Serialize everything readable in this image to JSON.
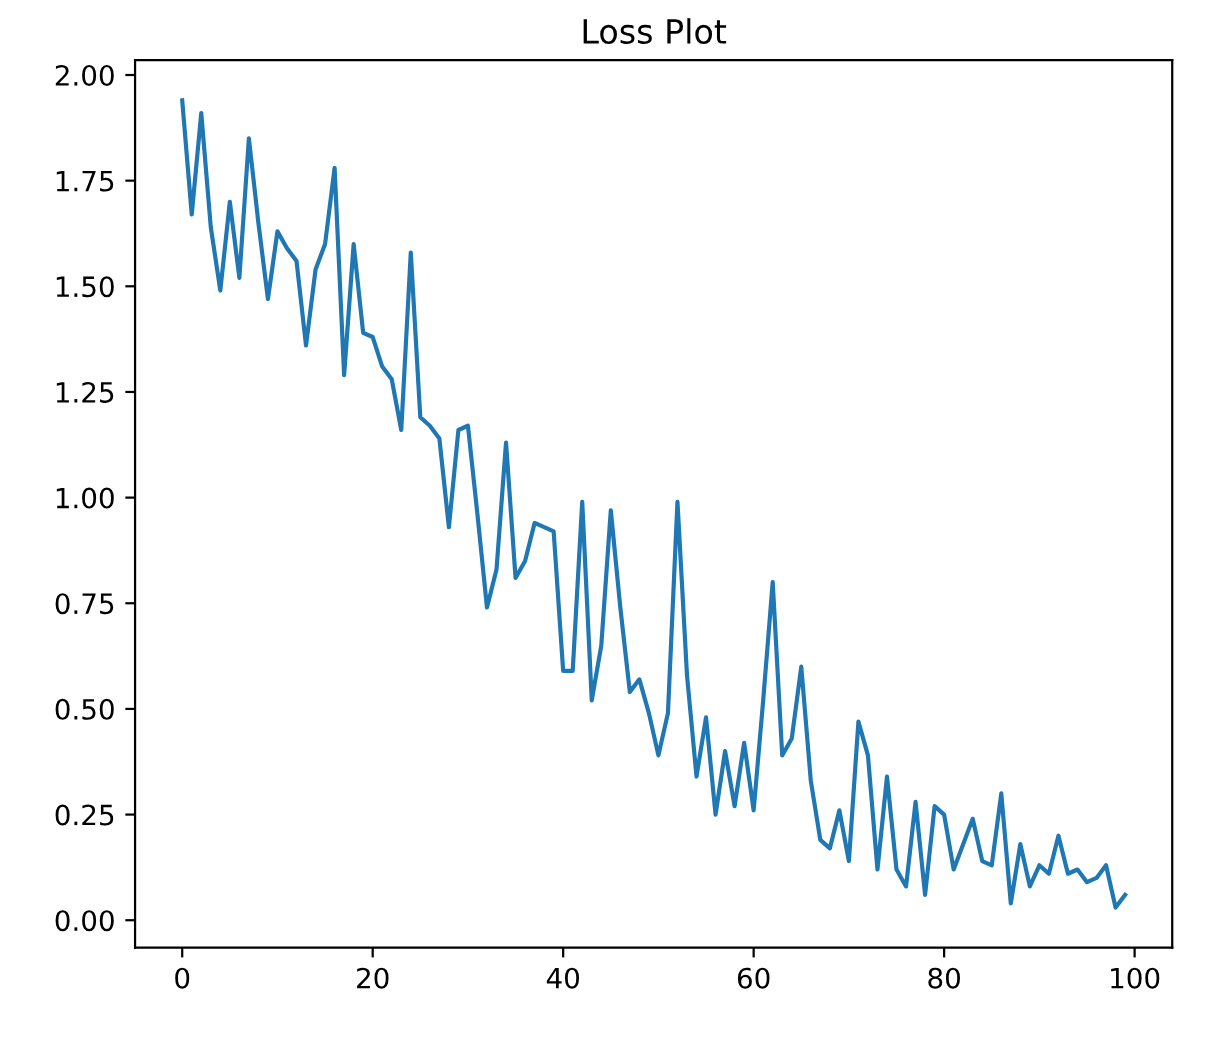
{
  "chart_data": {
    "type": "line",
    "title": "Loss Plot",
    "x": [
      0,
      1,
      2,
      3,
      4,
      5,
      6,
      7,
      8,
      9,
      10,
      11,
      12,
      13,
      14,
      15,
      16,
      17,
      18,
      19,
      20,
      21,
      22,
      23,
      24,
      25,
      26,
      27,
      28,
      29,
      30,
      31,
      32,
      33,
      34,
      35,
      36,
      37,
      38,
      39,
      40,
      41,
      42,
      43,
      44,
      45,
      46,
      47,
      48,
      49,
      50,
      51,
      52,
      53,
      54,
      55,
      56,
      57,
      58,
      59,
      60,
      61,
      62,
      63,
      64,
      65,
      66,
      67,
      68,
      69,
      70,
      71,
      72,
      73,
      74,
      75,
      76,
      77,
      78,
      79,
      80,
      81,
      82,
      83,
      84,
      85,
      86,
      87,
      88,
      89,
      90,
      91,
      92,
      93,
      94,
      95,
      96,
      97,
      98,
      99
    ],
    "series": [
      {
        "color": "#1f77b4",
        "values": [
          1.94,
          1.67,
          1.91,
          1.64,
          1.49,
          1.7,
          1.52,
          1.85,
          1.65,
          1.47,
          1.63,
          1.59,
          1.56,
          1.36,
          1.54,
          1.6,
          1.78,
          1.29,
          1.6,
          1.39,
          1.38,
          1.31,
          1.28,
          1.16,
          1.58,
          1.19,
          1.17,
          1.14,
          0.93,
          1.16,
          1.17,
          0.96,
          0.74,
          0.83,
          1.13,
          0.81,
          0.85,
          0.94,
          0.93,
          0.92,
          0.59,
          0.59,
          0.99,
          0.52,
          0.65,
          0.97,
          0.74,
          0.54,
          0.57,
          0.49,
          0.39,
          0.49,
          0.99,
          0.58,
          0.34,
          0.48,
          0.25,
          0.4,
          0.27,
          0.42,
          0.26,
          0.52,
          0.8,
          0.39,
          0.43,
          0.6,
          0.33,
          0.19,
          0.17,
          0.26,
          0.14,
          0.47,
          0.39,
          0.12,
          0.34,
          0.12,
          0.08,
          0.28,
          0.06,
          0.27,
          0.25,
          0.12,
          0.18,
          0.24,
          0.14,
          0.13,
          0.3,
          0.04,
          0.18,
          0.08,
          0.13,
          0.11,
          0.2,
          0.11,
          0.12,
          0.09,
          0.1,
          0.13,
          0.03,
          0.06
        ]
      }
    ],
    "xlim": [
      -4.95,
      103.95
    ],
    "ylim": [
      -0.065,
      2.035
    ],
    "xticks": [
      0,
      20,
      40,
      60,
      80,
      100
    ],
    "yticks": [
      {
        "value": 0,
        "label": "0.00"
      },
      {
        "value": 0.25,
        "label": "0.25"
      },
      {
        "value": 0.5,
        "label": "0.50"
      },
      {
        "value": 0.75,
        "label": "0.75"
      },
      {
        "value": 1.0,
        "label": "1.00"
      },
      {
        "value": 1.25,
        "label": "1.25"
      },
      {
        "value": 1.5,
        "label": "1.50"
      },
      {
        "value": 1.75,
        "label": "1.75"
      },
      {
        "value": 2.0,
        "label": "2.00"
      }
    ],
    "grid": false,
    "marker": "none",
    "line_style": "solid"
  }
}
